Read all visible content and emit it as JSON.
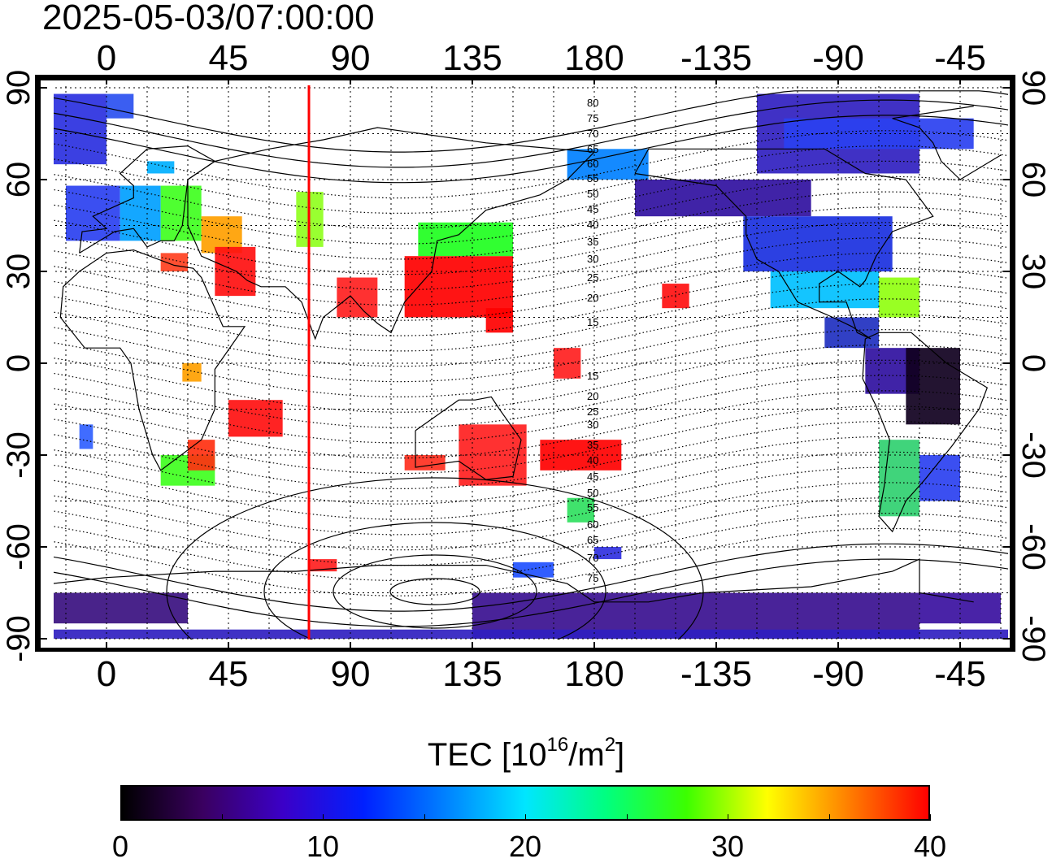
{
  "timestamp": "2025-05-03/07:00:00",
  "longitude_ticks_top": [
    "0",
    "45",
    "90",
    "135",
    "180",
    "-135",
    "-90",
    "-45"
  ],
  "longitude_ticks_bottom": [
    "0",
    "45",
    "90",
    "135",
    "180",
    "-135",
    "-90",
    "-45"
  ],
  "latitude_ticks_left": [
    "90",
    "60",
    "30",
    "0",
    "-30",
    "-60",
    "-90"
  ],
  "latitude_ticks_right": [
    "90",
    "60",
    "30",
    "0",
    "-30",
    "-60",
    "-90"
  ],
  "contour_labels_north": [
    "80",
    "75",
    "70",
    "65",
    "60",
    "55",
    "50",
    "45",
    "40",
    "35",
    "30",
    "25",
    "20",
    "15"
  ],
  "contour_labels_south": [
    "15",
    "20",
    "25",
    "30",
    "35",
    "40",
    "45",
    "50",
    "55",
    "60",
    "65",
    "70",
    "75"
  ],
  "colorbar": {
    "title_main": "TEC  [10",
    "title_sup1": "16",
    "title_mid": "/m",
    "title_sup2": "2",
    "title_end": "]",
    "ticks": [
      "0",
      "10",
      "20",
      "30",
      "40"
    ],
    "min": 0,
    "max": 40,
    "colors": [
      "#000000",
      "#3a0060",
      "#3b00c8",
      "#0020ff",
      "#0080ff",
      "#00e6ff",
      "#00ff80",
      "#3cff00",
      "#ffff00",
      "#ff8000",
      "#ff0000"
    ]
  },
  "terminator_line_color": "#ff0000",
  "map_projection": "equirectangular, longitude -22 to 338"
}
